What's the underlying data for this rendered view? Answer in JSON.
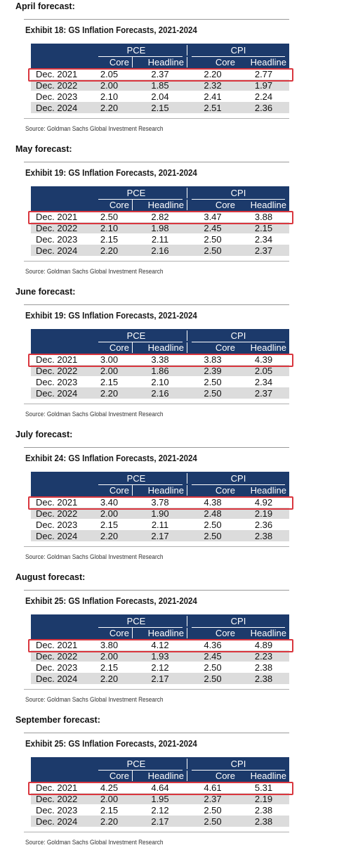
{
  "columns": {
    "group_pce": "PCE",
    "group_cpi": "CPI",
    "sub": [
      "Core",
      "Headline",
      "Core",
      "Headline"
    ]
  },
  "source": "Source: Goldman Sachs Global Investment Research",
  "highlight_color": "#d9363e",
  "header_color": "#1c3a6b",
  "forecasts": [
    {
      "label": "April forecast:",
      "exhibit": "Exhibit 18: GS Inflation Forecasts, 2021-2024",
      "rows": [
        {
          "period": "Dec. 2021",
          "pce_core": "2.05",
          "pce_headline": "2.37",
          "cpi_core": "2.20",
          "cpi_headline": "2.77"
        },
        {
          "period": "Dec. 2022",
          "pce_core": "2.00",
          "pce_headline": "1.85",
          "cpi_core": "2.32",
          "cpi_headline": "1.97"
        },
        {
          "period": "Dec. 2023",
          "pce_core": "2.10",
          "pce_headline": "2.04",
          "cpi_core": "2.41",
          "cpi_headline": "2.24"
        },
        {
          "period": "Dec. 2024",
          "pce_core": "2.20",
          "pce_headline": "2.15",
          "cpi_core": "2.51",
          "cpi_headline": "2.36"
        }
      ]
    },
    {
      "label": "May forecast:",
      "exhibit": "Exhibit 19: GS Inflation Forecasts, 2021-2024",
      "rows": [
        {
          "period": "Dec. 2021",
          "pce_core": "2.50",
          "pce_headline": "2.82",
          "cpi_core": "3.47",
          "cpi_headline": "3.88"
        },
        {
          "period": "Dec. 2022",
          "pce_core": "2.10",
          "pce_headline": "1.98",
          "cpi_core": "2.45",
          "cpi_headline": "2.15"
        },
        {
          "period": "Dec. 2023",
          "pce_core": "2.15",
          "pce_headline": "2.11",
          "cpi_core": "2.50",
          "cpi_headline": "2.34"
        },
        {
          "period": "Dec. 2024",
          "pce_core": "2.20",
          "pce_headline": "2.16",
          "cpi_core": "2.50",
          "cpi_headline": "2.37"
        }
      ]
    },
    {
      "label": "June forecast:",
      "exhibit": "Exhibit 19: GS Inflation Forecasts, 2021-2024",
      "rows": [
        {
          "period": "Dec. 2021",
          "pce_core": "3.00",
          "pce_headline": "3.38",
          "cpi_core": "3.83",
          "cpi_headline": "4.39"
        },
        {
          "period": "Dec. 2022",
          "pce_core": "2.00",
          "pce_headline": "1.86",
          "cpi_core": "2.39",
          "cpi_headline": "2.05"
        },
        {
          "period": "Dec. 2023",
          "pce_core": "2.15",
          "pce_headline": "2.10",
          "cpi_core": "2.50",
          "cpi_headline": "2.34"
        },
        {
          "period": "Dec. 2024",
          "pce_core": "2.20",
          "pce_headline": "2.16",
          "cpi_core": "2.50",
          "cpi_headline": "2.37"
        }
      ]
    },
    {
      "label": "July forecast:",
      "exhibit": "Exhibit 24: GS Inflation Forecasts, 2021-2024",
      "rows": [
        {
          "period": "Dec. 2021",
          "pce_core": "3.40",
          "pce_headline": "3.78",
          "cpi_core": "4.38",
          "cpi_headline": "4.92"
        },
        {
          "period": "Dec. 2022",
          "pce_core": "2.00",
          "pce_headline": "1.90",
          "cpi_core": "2.48",
          "cpi_headline": "2.19"
        },
        {
          "period": "Dec. 2023",
          "pce_core": "2.15",
          "pce_headline": "2.11",
          "cpi_core": "2.50",
          "cpi_headline": "2.36"
        },
        {
          "period": "Dec. 2024",
          "pce_core": "2.20",
          "pce_headline": "2.17",
          "cpi_core": "2.50",
          "cpi_headline": "2.38"
        }
      ]
    },
    {
      "label": "August forecast:",
      "exhibit": "Exhibit 25: GS Inflation Forecasts, 2021-2024",
      "rows": [
        {
          "period": "Dec. 2021",
          "pce_core": "3.80",
          "pce_headline": "4.12",
          "cpi_core": "4.36",
          "cpi_headline": "4.89"
        },
        {
          "period": "Dec. 2022",
          "pce_core": "2.00",
          "pce_headline": "1.93",
          "cpi_core": "2.45",
          "cpi_headline": "2.23"
        },
        {
          "period": "Dec. 2023",
          "pce_core": "2.15",
          "pce_headline": "2.12",
          "cpi_core": "2.50",
          "cpi_headline": "2.38"
        },
        {
          "period": "Dec. 2024",
          "pce_core": "2.20",
          "pce_headline": "2.17",
          "cpi_core": "2.50",
          "cpi_headline": "2.38"
        }
      ]
    },
    {
      "label": "September forecast:",
      "exhibit": "Exhibit 25: GS Inflation Forecasts, 2021-2024",
      "rows": [
        {
          "period": "Dec. 2021",
          "pce_core": "4.25",
          "pce_headline": "4.64",
          "cpi_core": "4.61",
          "cpi_headline": "5.31"
        },
        {
          "period": "Dec. 2022",
          "pce_core": "2.00",
          "pce_headline": "1.95",
          "cpi_core": "2.37",
          "cpi_headline": "2.19"
        },
        {
          "period": "Dec. 2023",
          "pce_core": "2.15",
          "pce_headline": "2.12",
          "cpi_core": "2.50",
          "cpi_headline": "2.38"
        },
        {
          "period": "Dec. 2024",
          "pce_core": "2.20",
          "pce_headline": "2.17",
          "cpi_core": "2.50",
          "cpi_headline": "2.38"
        }
      ]
    }
  ]
}
